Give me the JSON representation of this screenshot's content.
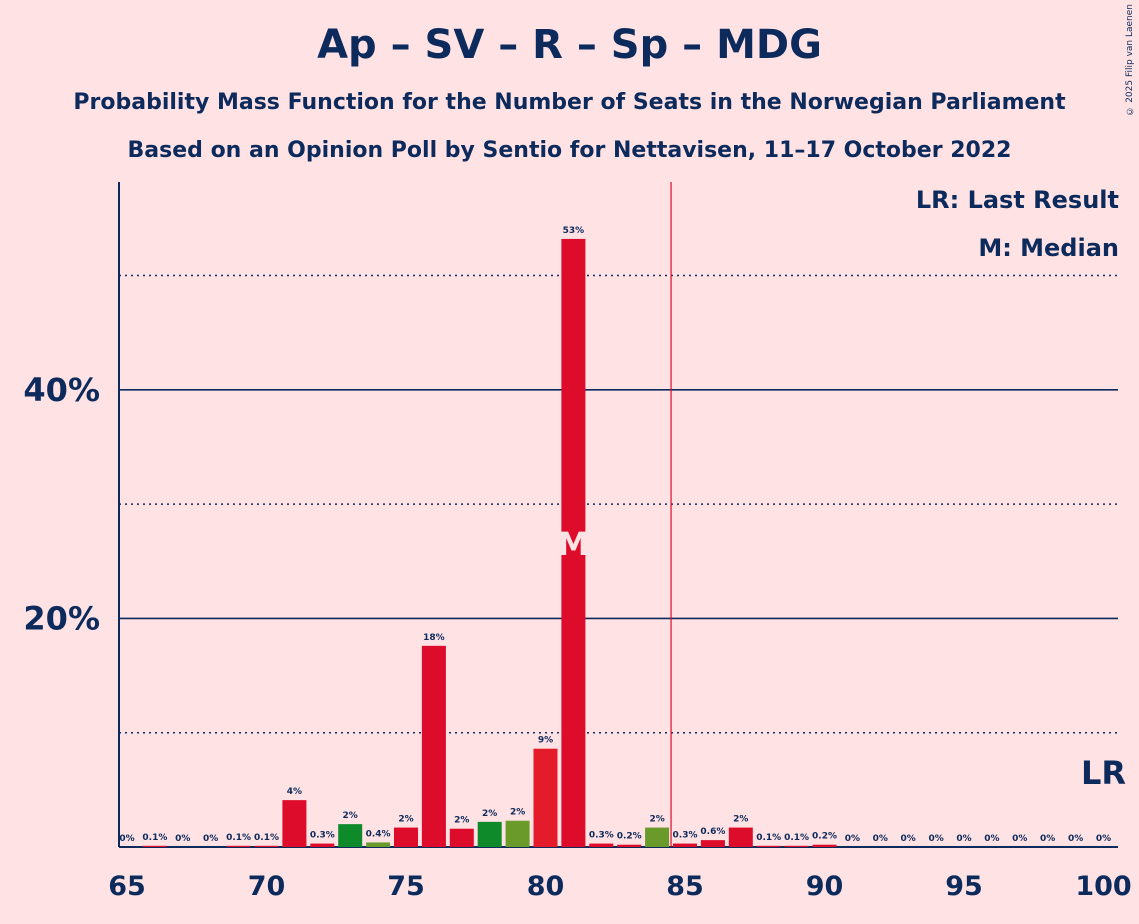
{
  "copyright": "© 2025 Filip van Laenen",
  "chart_data": {
    "type": "bar",
    "title": "Ap – SV – R – Sp – MDG",
    "subtitle_1": "Probability Mass Function for the Number of Seats in the Norwegian Parliament",
    "subtitle_2": "Based on an Opinion Poll by Sentio for Nettavisen, 11–17 October 2022",
    "xlabel": "",
    "ylabel": "",
    "xlim": [
      65,
      100
    ],
    "ylim": [
      0,
      58
    ],
    "x_ticks": [
      "65",
      "70",
      "75",
      "80",
      "85",
      "90",
      "95",
      "100"
    ],
    "y_ticks": [
      "20%",
      "40%"
    ],
    "grid": {
      "solid": [
        20,
        40
      ],
      "dotted": [
        10,
        30,
        50
      ]
    },
    "legend": {
      "lr": "LR: Last Result",
      "m": "M: Median"
    },
    "last_result": {
      "seats": 85,
      "label": "LR"
    },
    "median": {
      "seats": 81,
      "label": "M"
    },
    "colors": {
      "background": "#FFE2E4",
      "text": "#0C2A5B",
      "ap": "#DC0C2A",
      "sv": "#E41B2A",
      "sp": "#0E8A2A",
      "mdg": "#6A9A2A",
      "lr_line": "#DC0C2A"
    },
    "bars": [
      {
        "seats": 65,
        "value": 0,
        "label": "0%",
        "color": "ap"
      },
      {
        "seats": 66,
        "value": 0.1,
        "label": "0.1%",
        "color": "ap"
      },
      {
        "seats": 67,
        "value": 0,
        "label": "0%",
        "color": "ap"
      },
      {
        "seats": 68,
        "value": 0,
        "label": "0%",
        "color": "ap"
      },
      {
        "seats": 69,
        "value": 0.1,
        "label": "0.1%",
        "color": "ap"
      },
      {
        "seats": 70,
        "value": 0.1,
        "label": "0.1%",
        "color": "ap"
      },
      {
        "seats": 71,
        "value": 4.1,
        "label": "4%",
        "color": "ap"
      },
      {
        "seats": 72,
        "value": 0.3,
        "label": "0.3%",
        "color": "ap"
      },
      {
        "seats": 73,
        "value": 2.0,
        "label": "2%",
        "color": "sp"
      },
      {
        "seats": 74,
        "value": 0.4,
        "label": "0.4%",
        "color": "mdg"
      },
      {
        "seats": 75,
        "value": 1.7,
        "label": "2%",
        "color": "ap"
      },
      {
        "seats": 76,
        "value": 17.6,
        "label": "18%",
        "color": "ap"
      },
      {
        "seats": 77,
        "value": 1.6,
        "label": "2%",
        "color": "ap"
      },
      {
        "seats": 78,
        "value": 2.2,
        "label": "2%",
        "color": "sp"
      },
      {
        "seats": 79,
        "value": 2.3,
        "label": "2%",
        "color": "mdg"
      },
      {
        "seats": 80,
        "value": 8.6,
        "label": "9%",
        "color": "sv"
      },
      {
        "seats": 81,
        "value": 53.2,
        "label": "53%",
        "color": "ap"
      },
      {
        "seats": 82,
        "value": 0.3,
        "label": "0.3%",
        "color": "ap"
      },
      {
        "seats": 83,
        "value": 0.2,
        "label": "0.2%",
        "color": "ap"
      },
      {
        "seats": 84,
        "value": 1.7,
        "label": "2%",
        "color": "mdg"
      },
      {
        "seats": 85,
        "value": 0.3,
        "label": "0.3%",
        "color": "ap"
      },
      {
        "seats": 86,
        "value": 0.6,
        "label": "0.6%",
        "color": "ap"
      },
      {
        "seats": 87,
        "value": 1.7,
        "label": "2%",
        "color": "ap"
      },
      {
        "seats": 88,
        "value": 0.1,
        "label": "0.1%",
        "color": "ap"
      },
      {
        "seats": 89,
        "value": 0.1,
        "label": "0.1%",
        "color": "ap"
      },
      {
        "seats": 90,
        "value": 0.2,
        "label": "0.2%",
        "color": "ap"
      },
      {
        "seats": 91,
        "value": 0,
        "label": "0%",
        "color": "ap"
      },
      {
        "seats": 92,
        "value": 0,
        "label": "0%",
        "color": "ap"
      },
      {
        "seats": 93,
        "value": 0,
        "label": "0%",
        "color": "ap"
      },
      {
        "seats": 94,
        "value": 0,
        "label": "0%",
        "color": "ap"
      },
      {
        "seats": 95,
        "value": 0,
        "label": "0%",
        "color": "ap"
      },
      {
        "seats": 96,
        "value": 0,
        "label": "0%",
        "color": "ap"
      },
      {
        "seats": 97,
        "value": 0,
        "label": "0%",
        "color": "ap"
      },
      {
        "seats": 98,
        "value": 0,
        "label": "0%",
        "color": "ap"
      },
      {
        "seats": 99,
        "value": 0,
        "label": "0%",
        "color": "ap"
      },
      {
        "seats": 100,
        "value": 0,
        "label": "0%",
        "color": "ap"
      }
    ]
  }
}
